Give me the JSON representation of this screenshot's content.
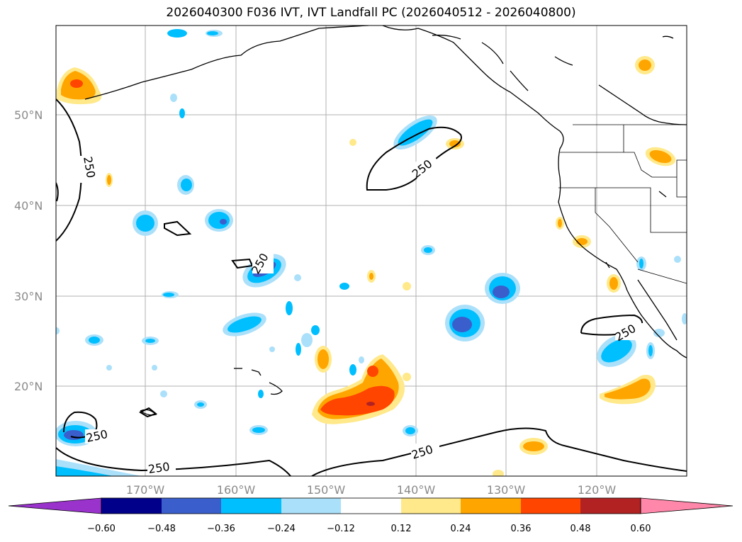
{
  "title": "2026040300 F036 IVT, IVT Landfall PC (2026040512 - 2026040800)",
  "lat_labels": [
    "50°N",
    "40°N",
    "30°N",
    "20°N"
  ],
  "lon_labels": [
    "170°W",
    "160°W",
    "150°W",
    "140°W",
    "130°W",
    "120°W"
  ],
  "contour_value": "250",
  "colorbar": {
    "ticks": [
      "−0.60",
      "−0.48",
      "−0.36",
      "−0.24",
      "−0.12",
      "0.12",
      "0.24",
      "0.36",
      "0.48",
      "0.60"
    ],
    "colors": [
      "#9933cc",
      "#00008b",
      "#3a5fcd",
      "#00bfff",
      "#abe0fa",
      "#ffffff",
      "#ffe98a",
      "#ffa500",
      "#ff4500",
      "#b22222",
      "#ff88aa"
    ]
  }
}
